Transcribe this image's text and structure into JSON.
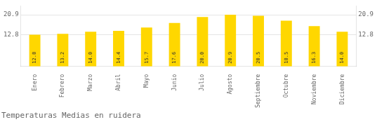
{
  "chart_data": {
    "type": "bar",
    "title": "Temperaturas Medias en ruidera",
    "categories": [
      "Enero",
      "Febrero",
      "Marzo",
      "Abril",
      "Mayo",
      "Junio",
      "Julio",
      "Agosto",
      "Septiembre",
      "Octubre",
      "Noviembre",
      "Diciembre"
    ],
    "values": [
      12.8,
      13.2,
      14.0,
      14.4,
      15.7,
      17.6,
      20.0,
      20.9,
      20.5,
      18.5,
      16.3,
      14.0
    ],
    "value_labels": [
      "12.8",
      "13.2",
      "14.0",
      "14.4",
      "15.7",
      "17.6",
      "20.0",
      "20.9",
      "20.5",
      "18.5",
      "16.3",
      "14.0"
    ],
    "color": "#FFD700",
    "ylim": [
      0,
      24.5
    ],
    "yticks": [
      12.8,
      20.9
    ],
    "y2lim": [
      0,
      24.5
    ],
    "y2ticks": [
      12.8,
      20.9
    ],
    "grid": true,
    "data_labels": true
  }
}
